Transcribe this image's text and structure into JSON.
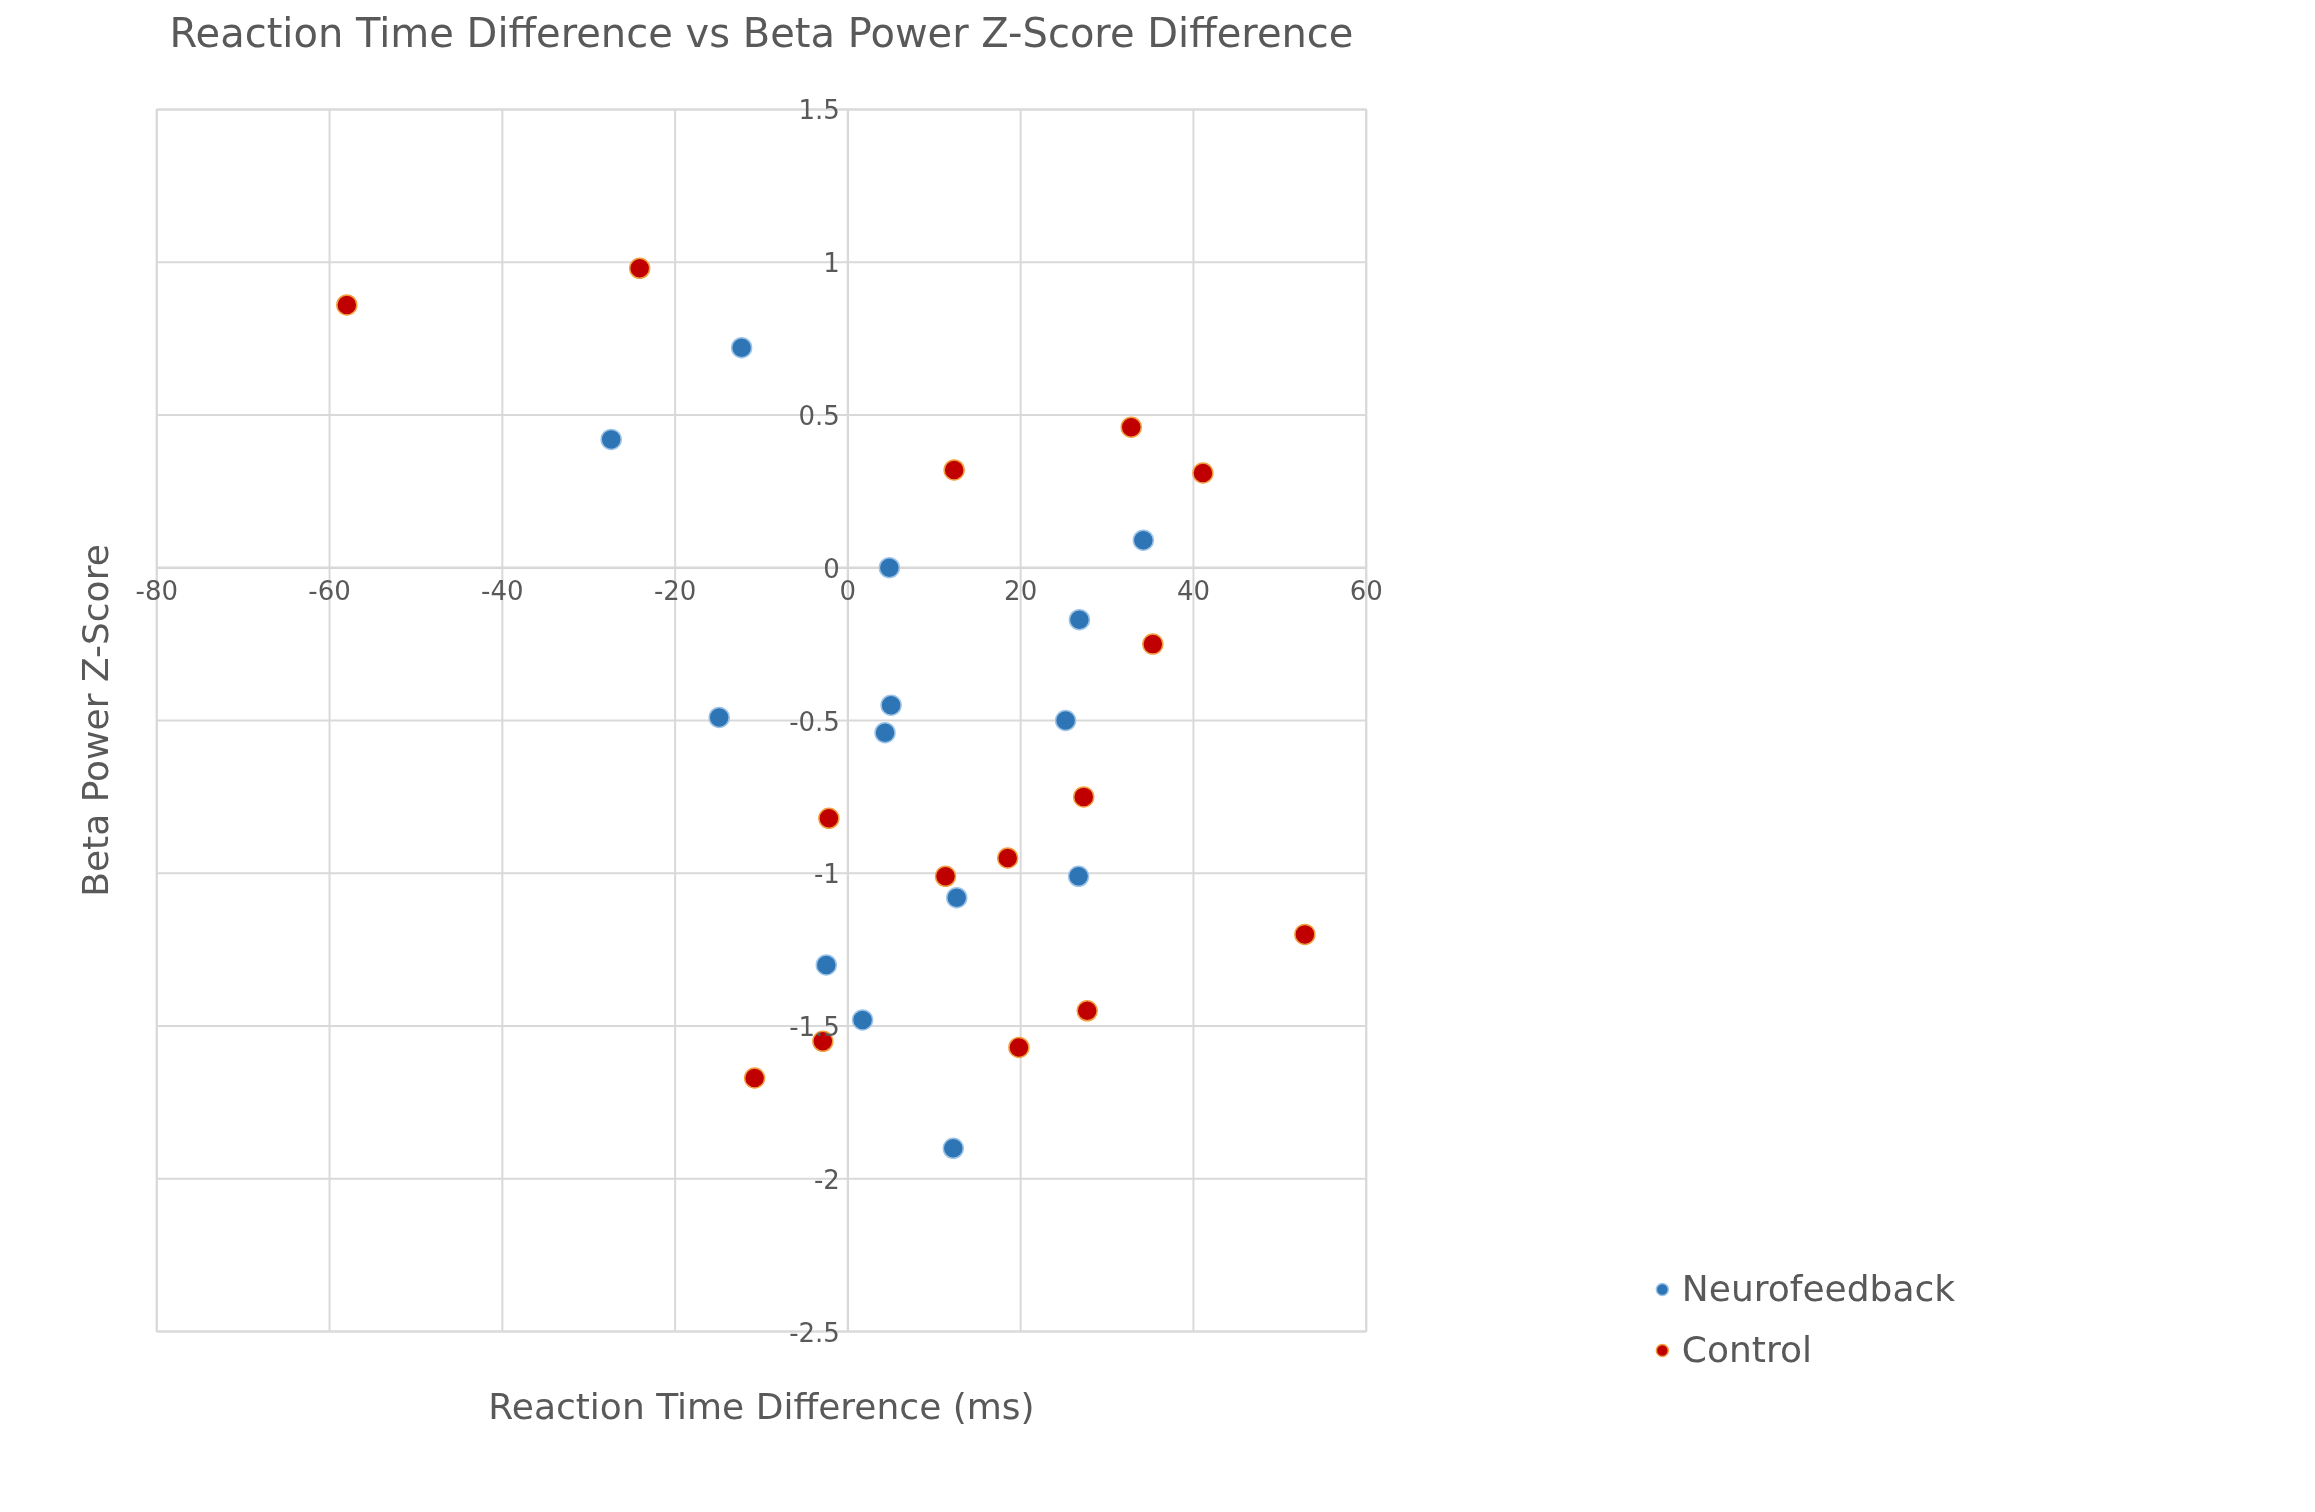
{
  "chart_data": {
    "type": "scatter",
    "title": "Reaction Time Difference vs Beta Power Z-Score Difference",
    "xlabel": "Reaction Time Difference (ms)",
    "ylabel": "Beta Power Z-Score",
    "xlim": [
      -80,
      60
    ],
    "xticks": [
      -80,
      -60,
      -40,
      -20,
      0,
      20,
      40,
      60
    ],
    "ylim": [
      -2.5,
      1.5
    ],
    "yticks": [
      -2.5,
      -2,
      -1.5,
      -1,
      -0.5,
      0,
      0.5,
      1,
      1.5
    ],
    "grid": true,
    "legend": "bottom right",
    "marker": "circle",
    "series": [
      {
        "name": "Neurofeedback",
        "color": "#2e75b6",
        "x": [
          -27.4,
          -12.3,
          4.8,
          34.2,
          26.8,
          -14.9,
          5.0,
          4.3,
          25.2,
          26.7,
          12.6,
          -2.5,
          1.7,
          12.2
        ],
        "values": [
          0.42,
          0.72,
          0.0,
          0.09,
          -0.17,
          -0.49,
          -0.45,
          -0.54,
          -0.5,
          -1.01,
          -1.08,
          -1.3,
          -1.48,
          -1.9
        ]
      },
      {
        "name": "Control",
        "color": "#c00000",
        "x": [
          -58.0,
          -24.1,
          32.8,
          12.3,
          41.1,
          35.3,
          27.3,
          -2.2,
          11.3,
          18.5,
          52.9,
          27.7,
          -2.9,
          19.8,
          -10.8
        ],
        "values": [
          0.86,
          0.98,
          0.46,
          0.32,
          0.31,
          -0.25,
          -0.75,
          -0.82,
          -1.01,
          -0.95,
          -1.2,
          -1.45,
          -1.55,
          -1.57,
          -1.67
        ]
      }
    ]
  }
}
